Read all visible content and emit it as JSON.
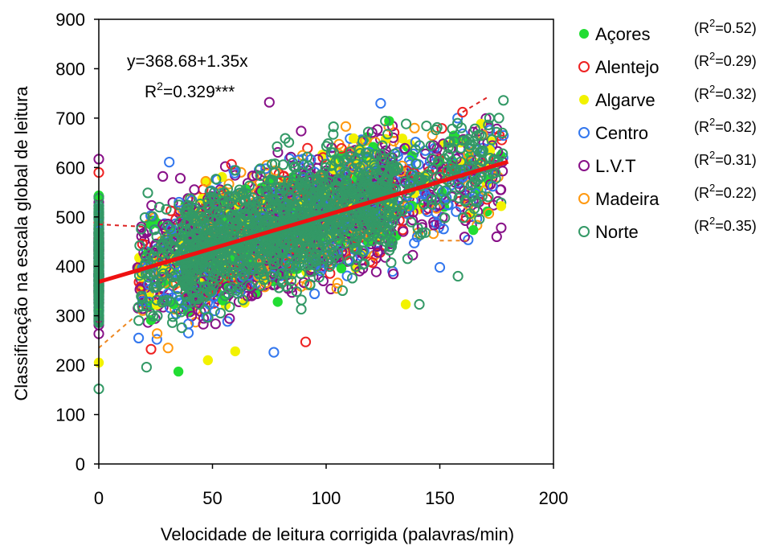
{
  "chart_data": {
    "type": "scatter",
    "title": "",
    "xlabel": "Velocidade de leitura corrigida (palavras/min)",
    "ylabel": "Classificação na escala global de leitura",
    "xlim": [
      0,
      200
    ],
    "ylim": [
      0,
      900
    ],
    "xticks": [
      "0",
      "50",
      "100",
      "150",
      "200"
    ],
    "yticks": [
      "0",
      "100",
      "200",
      "300",
      "400",
      "500",
      "600",
      "700",
      "800",
      "900"
    ],
    "equation": "y=368.68+1.35x",
    "r2_overall": {
      "base": "R",
      "sup": "2",
      "rest": "=0.329***"
    },
    "fit_line": {
      "intercept": 368.68,
      "slope": 1.35,
      "x_range": [
        0,
        180
      ],
      "color": "#ee1111"
    },
    "regional_fit_lines": [
      {
        "series": "Alentejo",
        "color": "#dd2222",
        "points": [
          [
            0,
            485
          ],
          [
            20,
            480
          ]
        ]
      },
      {
        "series": "Alentejo",
        "color": "#dd2222",
        "points": [
          [
            160,
            712
          ],
          [
            172,
            745
          ]
        ]
      },
      {
        "series": "Madeira",
        "color": "#ee8822",
        "points": [
          [
            0,
            235
          ],
          [
            15,
            295
          ]
        ]
      },
      {
        "series": "Madeira",
        "color": "#ee8822",
        "points": [
          [
            150,
            452
          ],
          [
            162,
            452
          ]
        ]
      }
    ],
    "series": [
      {
        "name": "Açores",
        "r2": "0.52",
        "color": "#22dd33",
        "filled": true
      },
      {
        "name": "Alentejo",
        "r2": "0.29",
        "color": "#ee2222",
        "filled": false
      },
      {
        "name": "Algarve",
        "r2": "0.32",
        "color": "#f2f200",
        "filled": true
      },
      {
        "name": "Centro",
        "r2": "0.32",
        "color": "#3377ee",
        "filled": false
      },
      {
        "name": "L.V.T",
        "r2": "0.31",
        "color": "#881188",
        "filled": false
      },
      {
        "name": "Madeira",
        "r2": "0.22",
        "color": "#ff9911",
        "filled": false
      },
      {
        "name": "Norte",
        "r2": "0.35",
        "color": "#339966",
        "filled": false
      }
    ],
    "legend_position": "right",
    "notable_points": [
      {
        "series": "Açores",
        "x": 35,
        "y": 187
      },
      {
        "series": "Algarve",
        "x": 48,
        "y": 210
      },
      {
        "series": "Algarve",
        "x": 60,
        "y": 228
      },
      {
        "series": "Centro",
        "x": 77,
        "y": 226
      },
      {
        "series": "Norte",
        "x": 0,
        "y": 152
      },
      {
        "series": "Norte",
        "x": 21,
        "y": 196
      },
      {
        "series": "Alentejo",
        "x": 91,
        "y": 247
      },
      {
        "series": "L.V.T",
        "x": 75,
        "y": 732
      },
      {
        "series": "Centro",
        "x": 124,
        "y": 730
      },
      {
        "series": "Norte",
        "x": 178,
        "y": 736
      },
      {
        "series": "Centro",
        "x": 31,
        "y": 611
      },
      {
        "series": "Algarve",
        "x": 135,
        "y": 323
      },
      {
        "series": "Norte",
        "x": 141,
        "y": 323
      },
      {
        "series": "Centro",
        "x": 150,
        "y": 398
      },
      {
        "series": "Norte",
        "x": 158,
        "y": 380
      },
      {
        "series": "L.V.T",
        "x": 175,
        "y": 460
      },
      {
        "series": "L.V.T",
        "x": 177,
        "y": 478
      },
      {
        "series": "Algarve",
        "x": 177,
        "y": 522
      },
      {
        "series": "Alentejo",
        "x": 160,
        "y": 712
      },
      {
        "series": "L.V.T",
        "x": 0,
        "y": 617
      },
      {
        "series": "Alentejo",
        "x": 0,
        "y": 590
      },
      {
        "series": "Algarve",
        "x": 0,
        "y": 205
      }
    ]
  }
}
